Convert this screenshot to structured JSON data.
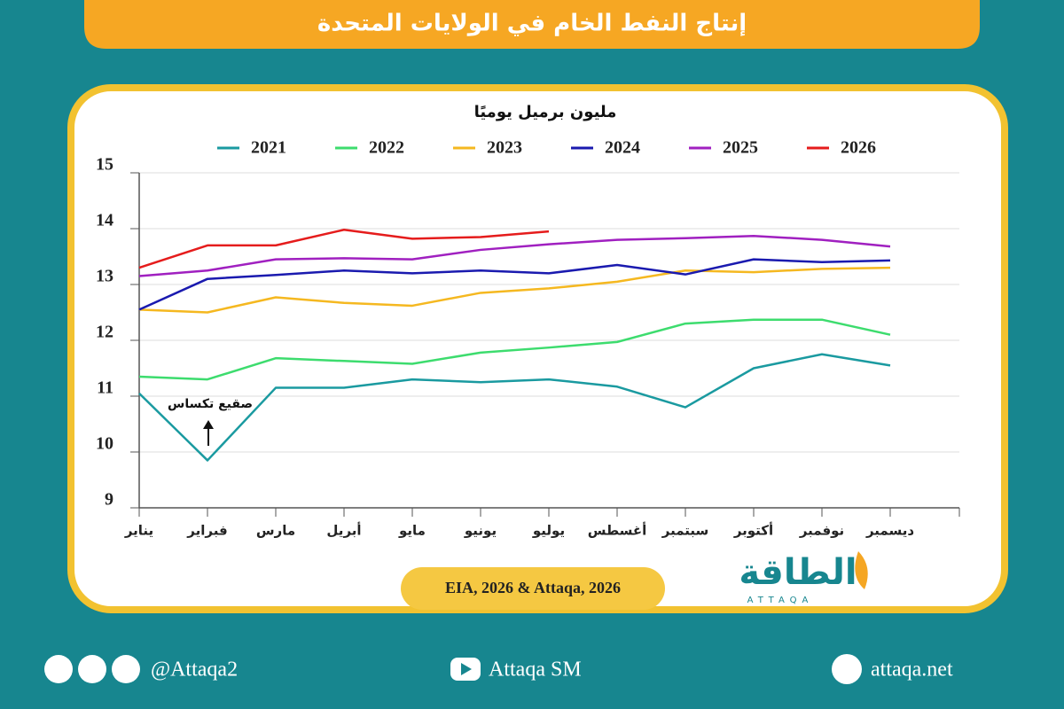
{
  "chart_data": {
    "type": "line",
    "title": "إنتاج النفط الخام في الولايات المتحدة",
    "ylabel": "مليون برميل يوميًا",
    "categories": [
      "يناير",
      "فبراير",
      "مارس",
      "أبريل",
      "مايو",
      "يونيو",
      "يوليو",
      "أغسطس",
      "سبتمبر",
      "أكتوبر",
      "نوفمبر",
      "ديسمبر"
    ],
    "series": [
      {
        "name": "2021",
        "color": "#1a9aa0",
        "values": [
          11.05,
          9.85,
          11.15,
          11.15,
          11.3,
          11.25,
          11.3,
          11.17,
          10.8,
          11.5,
          11.75,
          11.55
        ]
      },
      {
        "name": "2022",
        "color": "#3ddc6e",
        "values": [
          11.35,
          11.3,
          11.68,
          11.63,
          11.58,
          11.78,
          11.87,
          11.97,
          12.3,
          12.37,
          12.37,
          12.1
        ]
      },
      {
        "name": "2023",
        "color": "#f5b820",
        "values": [
          12.55,
          12.5,
          12.77,
          12.67,
          12.62,
          12.85,
          12.93,
          13.05,
          13.25,
          13.22,
          13.28,
          13.3
        ]
      },
      {
        "name": "2024",
        "color": "#1a1aaf",
        "values": [
          12.55,
          13.1,
          13.17,
          13.25,
          13.2,
          13.25,
          13.2,
          13.35,
          13.18,
          13.45,
          13.4,
          13.43
        ]
      },
      {
        "name": "2025",
        "color": "#a020c0",
        "values": [
          13.15,
          13.25,
          13.45,
          13.47,
          13.45,
          13.62,
          13.72,
          13.8,
          13.83,
          13.87,
          13.8,
          13.68
        ]
      },
      {
        "name": "2026",
        "color": "#e51c1c",
        "values": [
          13.3,
          13.7,
          13.7,
          13.98,
          13.82,
          13.85,
          13.95,
          null,
          null,
          null,
          null,
          null
        ]
      }
    ],
    "ylim": [
      9,
      15
    ],
    "yticks": [
      9,
      10,
      11,
      12,
      13,
      14,
      15
    ],
    "grid": true,
    "annotation": "صقيع تكساس",
    "source": "EIA, 2026 & Attaqa, 2026"
  },
  "logo": {
    "arabic": "الطاقة",
    "latin": "ATTAQA"
  },
  "footer": {
    "social": "@Attaqa2",
    "youtube": "Attaqa SM",
    "website": "attaqa.net"
  }
}
